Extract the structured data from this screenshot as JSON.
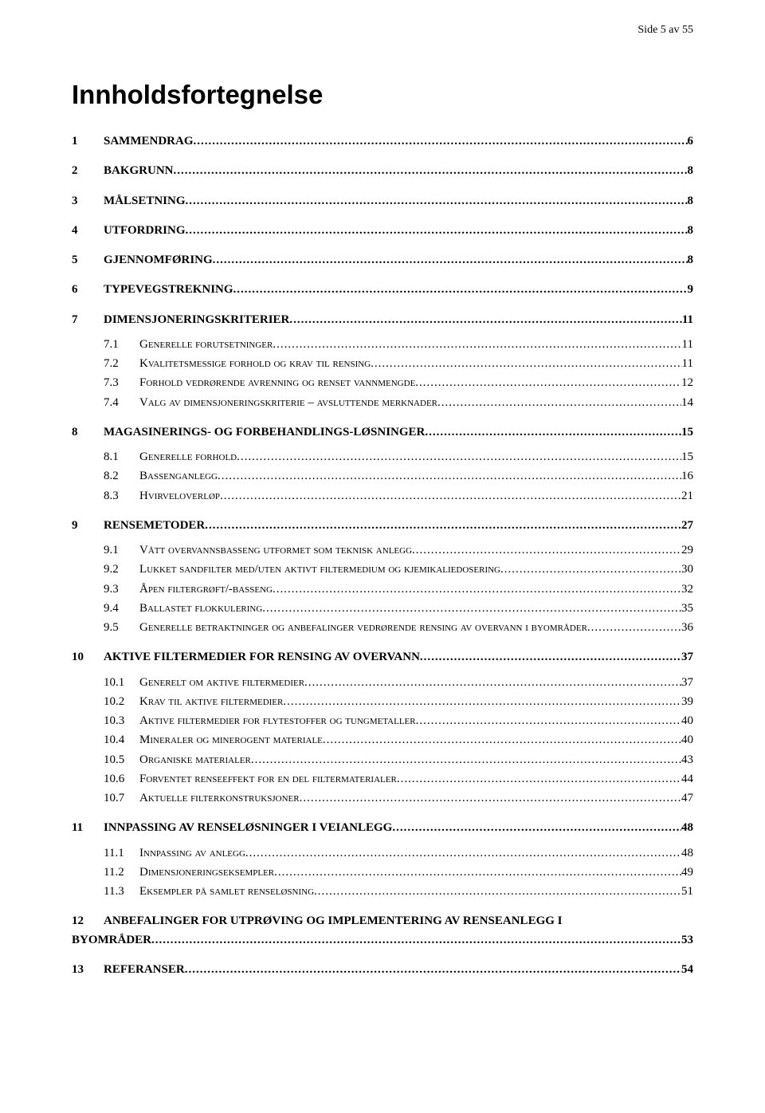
{
  "page_header": "Side 5 av 55",
  "title": "Innholdsfortegnelse",
  "colors": {
    "text": "#000000",
    "background": "#ffffff"
  },
  "toc": {
    "s1": {
      "num": "1",
      "title": "SAMMENDRAG",
      "page": "6"
    },
    "s2": {
      "num": "2",
      "title": "BAKGRUNN",
      "page": "8"
    },
    "s3": {
      "num": "3",
      "title": "MÅLSETNING",
      "page": "8"
    },
    "s4": {
      "num": "4",
      "title": "UTFORDRING",
      "page": "8"
    },
    "s5": {
      "num": "5",
      "title": "GJENNOMFØRING",
      "page": "8"
    },
    "s6": {
      "num": "6",
      "title": "TYPEVEGSTREKNING",
      "page": "9"
    },
    "s7": {
      "num": "7",
      "title": "DIMENSJONERINGSKRITERIER",
      "page": "11",
      "c1": {
        "num": "7.1",
        "title": "Generelle forutsetninger",
        "page": "11"
      },
      "c2": {
        "num": "7.2",
        "title": "Kvalitetsmessige forhold og krav til rensing",
        "page": "11"
      },
      "c3": {
        "num": "7.3",
        "title": "Forhold vedrørende avrenning og renset vannmengde",
        "page": "12"
      },
      "c4": {
        "num": "7.4",
        "title": "Valg av dimensjoneringskriterie – avsluttende merknader",
        "page": "14"
      }
    },
    "s8": {
      "num": "8",
      "title": "MAGASINERINGS- OG FORBEHANDLINGS-LØSNINGER",
      "page": "15",
      "c1": {
        "num": "8.1",
        "title": "Generelle forhold",
        "page": "15"
      },
      "c2": {
        "num": "8.2",
        "title": "Bassenganlegg",
        "page": "16"
      },
      "c3": {
        "num": "8.3",
        "title": "Hvirveloverløp",
        "page": "21"
      }
    },
    "s9": {
      "num": "9",
      "title": "RENSEMETODER",
      "page": "27",
      "c1": {
        "num": "9.1",
        "title": "Vått overvannsbasseng utformet som teknisk anlegg",
        "page": "29"
      },
      "c2": {
        "num": "9.2",
        "title": "Lukket sandfilter med/uten aktivt filtermedium og kjemikaliedosering",
        "page": "30"
      },
      "c3": {
        "num": "9.3",
        "title": "Åpen filtergrøft/-basseng",
        "page": "32"
      },
      "c4": {
        "num": "9.4",
        "title": "Ballastet flokkulering",
        "page": "35"
      },
      "c5": {
        "num": "9.5",
        "title": "Generelle betraktninger og anbefalinger vedrørende rensing av overvann i byområder",
        "page": "36"
      }
    },
    "s10": {
      "num": "10",
      "title": "AKTIVE FILTERMEDIER FOR RENSING AV OVERVANN",
      "page": "37",
      "c1": {
        "num": "10.1",
        "title": "Generelt om aktive filtermedier",
        "page": "37"
      },
      "c2": {
        "num": "10.2",
        "title": "Krav til aktive filtermedier",
        "page": "39"
      },
      "c3": {
        "num": "10.3",
        "title": "Aktive filtermedier for flytestoffer og tungmetaller",
        "page": "40"
      },
      "c4": {
        "num": "10.4",
        "title": "Mineraler og minerogent materiale",
        "page": "40"
      },
      "c5": {
        "num": "10.5",
        "title": "Organiske materialer",
        "page": "43"
      },
      "c6": {
        "num": "10.6",
        "title": "Forventet renseeffekt for en del filtermaterialer",
        "page": "44"
      },
      "c7": {
        "num": "10.7",
        "title": "Aktuelle filterkonstruksjoner",
        "page": "47"
      }
    },
    "s11": {
      "num": "11",
      "title": "INNPASSING AV RENSELØSNINGER I VEIANLEGG",
      "page": "48",
      "c1": {
        "num": "11.1",
        "title": "Innpassing av anlegg",
        "page": "48"
      },
      "c2": {
        "num": "11.2",
        "title": "Dimensjoneringseksempler",
        "page": "49"
      },
      "c3": {
        "num": "11.3",
        "title": "Eksempler på samlet renseløsning",
        "page": "51"
      }
    },
    "s12": {
      "num": "12",
      "title_line1": "ANBEFALINGER FOR UTPRØVING OG IMPLEMENTERING AV RENSEANLEGG I",
      "title_line2": "BYOMRÅDER",
      "page": "53"
    },
    "s13": {
      "num": "13",
      "title": "REFERANSER",
      "page": "54"
    }
  }
}
